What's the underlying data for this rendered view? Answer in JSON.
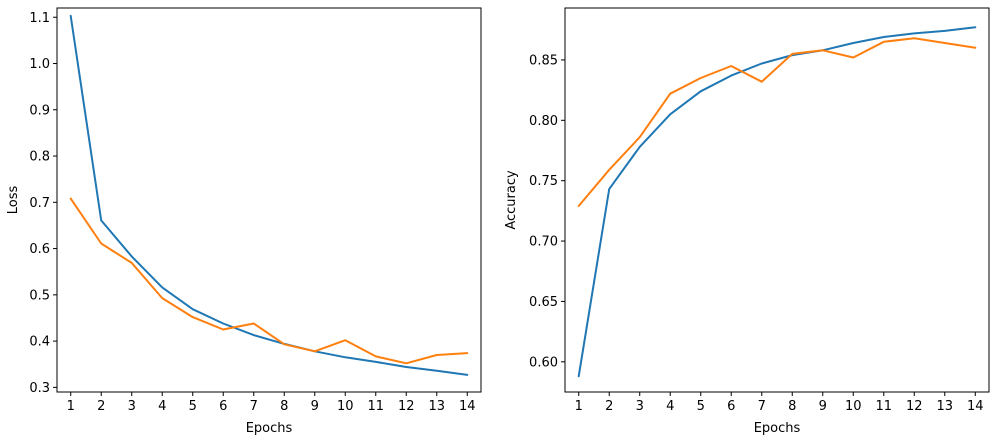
{
  "chart_data": [
    {
      "type": "line",
      "title": "",
      "xlabel": "Epochs",
      "ylabel": "Loss",
      "x": [
        1,
        2,
        3,
        4,
        5,
        6,
        7,
        8,
        9,
        10,
        11,
        12,
        13,
        14
      ],
      "x_ticks": [
        "1",
        "2",
        "3",
        "4",
        "5",
        "6",
        "7",
        "8",
        "9",
        "10",
        "11",
        "12",
        "13",
        "14"
      ],
      "y_ticks": [
        "0.3",
        "0.4",
        "0.5",
        "0.6",
        "0.7",
        "0.8",
        "0.9",
        "1.0",
        "1.1"
      ],
      "y_tick_values": [
        0.3,
        0.4,
        0.5,
        0.6,
        0.7,
        0.8,
        0.9,
        1.0,
        1.1
      ],
      "ylim": [
        0.29,
        1.12
      ],
      "xlim": [
        0.55,
        14.45
      ],
      "grid": false,
      "series": [
        {
          "color": "#1f77b4",
          "values": [
            1.103,
            0.661,
            0.583,
            0.516,
            0.469,
            0.438,
            0.413,
            0.394,
            0.378,
            0.365,
            0.355,
            0.344,
            0.336,
            0.327
          ]
        },
        {
          "color": "#ff7f0e",
          "values": [
            0.708,
            0.611,
            0.569,
            0.493,
            0.452,
            0.425,
            0.438,
            0.393,
            0.378,
            0.402,
            0.367,
            0.352,
            0.37,
            0.374
          ]
        }
      ]
    },
    {
      "type": "line",
      "title": "",
      "xlabel": "Epochs",
      "ylabel": "Accuracy",
      "x": [
        1,
        2,
        3,
        4,
        5,
        6,
        7,
        8,
        9,
        10,
        11,
        12,
        13,
        14
      ],
      "x_ticks": [
        "1",
        "2",
        "3",
        "4",
        "5",
        "6",
        "7",
        "8",
        "9",
        "10",
        "11",
        "12",
        "13",
        "14"
      ],
      "y_ticks": [
        "0.60",
        "0.65",
        "0.70",
        "0.75",
        "0.80",
        "0.85"
      ],
      "y_tick_values": [
        0.6,
        0.65,
        0.7,
        0.75,
        0.8,
        0.85
      ],
      "ylim": [
        0.575,
        0.893
      ],
      "xlim": [
        0.55,
        14.45
      ],
      "grid": false,
      "series": [
        {
          "color": "#1f77b4",
          "values": [
            0.588,
            0.743,
            0.778,
            0.805,
            0.824,
            0.837,
            0.847,
            0.854,
            0.858,
            0.864,
            0.869,
            0.872,
            0.874,
            0.877
          ]
        },
        {
          "color": "#ff7f0e",
          "values": [
            0.729,
            0.759,
            0.786,
            0.822,
            0.835,
            0.845,
            0.832,
            0.855,
            0.858,
            0.852,
            0.865,
            0.868,
            0.864,
            0.86
          ]
        }
      ]
    }
  ]
}
